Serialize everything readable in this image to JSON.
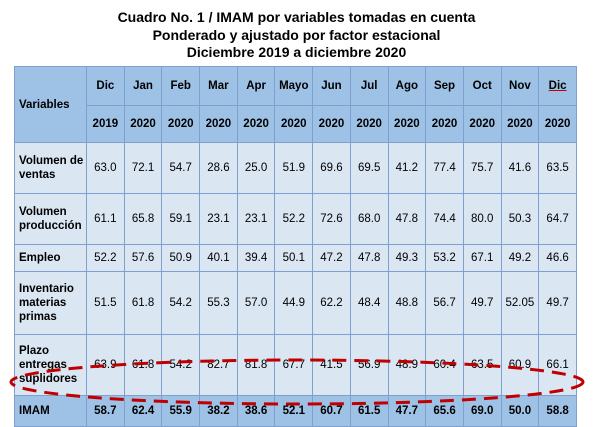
{
  "title": {
    "line1": "Cuadro No. 1 / IMAM por variables tomadas en cuenta",
    "line2": "Ponderado y ajustado por factor estacional",
    "line3": "Diciembre 2019 a diciembre 2020"
  },
  "table": {
    "row_header": "Variables",
    "months": [
      "Dic",
      "Jan",
      "Feb",
      "Mar",
      "Apr",
      "Mayo",
      "Jun",
      "Jul",
      "Ago",
      "Sep",
      "Oct",
      "Nov",
      "Dic"
    ],
    "years": [
      "2019",
      "2020",
      "2020",
      "2020",
      "2020",
      "2020",
      "2020",
      "2020",
      "2020",
      "2020",
      "2020",
      "2020",
      "2020"
    ],
    "rows": [
      {
        "label_lines": [
          "Volumen de",
          "ventas"
        ],
        "values": [
          "63.0",
          "72.1",
          "54.7",
          "28.6",
          "25.0",
          "51.9",
          "69.6",
          "69.5",
          "41.2",
          "77.4",
          "75.7",
          "41.6",
          "63.5"
        ]
      },
      {
        "label_lines": [
          "Volumen",
          "producción"
        ],
        "values": [
          "61.1",
          "65.8",
          "59.1",
          "23.1",
          "23.1",
          "52.2",
          "72.6",
          "68.0",
          "47.8",
          "74.4",
          "80.0",
          "50.3",
          "64.7"
        ]
      },
      {
        "label_lines": [
          "Empleo"
        ],
        "values": [
          "52.2",
          "57.6",
          "50.9",
          "40.1",
          "39.4",
          "50.1",
          "47.2",
          "47.8",
          "49.3",
          "53.2",
          "67.1",
          "49.2",
          "46.6"
        ]
      },
      {
        "label_lines": [
          "Inventario",
          "materias",
          "primas"
        ],
        "values": [
          "51.5",
          "61.8",
          "54.2",
          "55.3",
          "57.0",
          "44.9",
          "62.2",
          "48.4",
          "48.8",
          "56.7",
          "49.7",
          "52.05",
          "49.7"
        ]
      },
      {
        "label_lines": [
          "Plazo",
          "entregas",
          "suplidores"
        ],
        "values": [
          "63.9",
          "61.8",
          "54.2",
          "82.7",
          "81.8",
          "67.7",
          "41.5",
          "56.9",
          "48.9",
          "60.4",
          "63.5",
          "60.9",
          "66.1"
        ]
      }
    ],
    "total": {
      "label": "IMAM",
      "values": [
        "58.7",
        "62.4",
        "55.9",
        "38.2",
        "38.6",
        "52.1",
        "60.7",
        "61.5",
        "47.7",
        "65.6",
        "69.0",
        "50.0",
        "58.8"
      ]
    }
  },
  "colors": {
    "header": "#9ec1e6",
    "body": "#dbe6f3",
    "oval": "#c00000"
  }
}
